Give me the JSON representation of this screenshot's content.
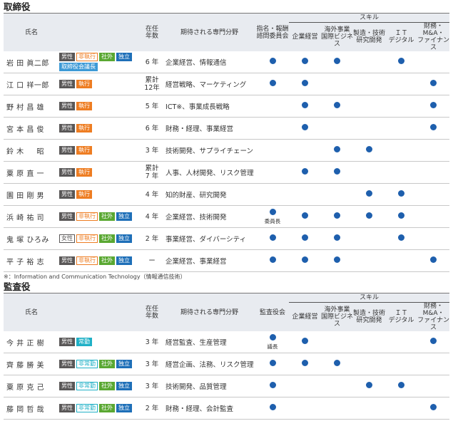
{
  "sections": [
    {
      "title": "取締役",
      "header": {
        "name": "氏名",
        "tenure": "在任\n年数",
        "field": "期待される専門分野",
        "committee": "指名・報酬\n諮問委員会",
        "skill_group": "スキル",
        "skills": [
          "企業経営",
          "海外事業\n国際ビジネス",
          "製造・技術\n研究開発",
          "ＩＴ\nデジタル",
          "財務・M&A・\nファイナンス"
        ]
      },
      "rows": [
        {
          "name": "岩 田 眞二郎",
          "tags": [
            {
              "text": "男性",
              "color": "#595757",
              "fill": true
            },
            {
              "text": "非執行",
              "color": "#ee7d22",
              "fill": false
            },
            {
              "text": "社外",
              "color": "#5aa832",
              "fill": true
            },
            {
              "text": "独立",
              "color": "#1e6fb8",
              "fill": true
            },
            {
              "text": "取締役会議長",
              "color": "#3d9ad6",
              "fill": true
            }
          ],
          "tenure": "6 年",
          "field": "企業経営、情報通信",
          "committee": true,
          "skills": [
            true,
            true,
            false,
            true,
            false
          ]
        },
        {
          "name": "江 口 祥一郎",
          "tags": [
            {
              "text": "男性",
              "color": "#595757",
              "fill": true
            },
            {
              "text": "執行",
              "color": "#ee7d22",
              "fill": true
            }
          ],
          "tenure": "累計\n12年",
          "field": "経営戦略、マーケティング",
          "committee": true,
          "skills": [
            true,
            false,
            false,
            false,
            true
          ]
        },
        {
          "name": "野 村 昌 雄",
          "tags": [
            {
              "text": "男性",
              "color": "#595757",
              "fill": true
            },
            {
              "text": "執行",
              "color": "#ee7d22",
              "fill": true
            }
          ],
          "tenure": "5 年",
          "field": "ICT※、事業成長戦略",
          "committee": false,
          "skills": [
            true,
            true,
            false,
            false,
            true
          ]
        },
        {
          "name": "宮 本 昌 俊",
          "tags": [
            {
              "text": "男性",
              "color": "#595757",
              "fill": true
            },
            {
              "text": "執行",
              "color": "#ee7d22",
              "fill": true
            }
          ],
          "tenure": "6 年",
          "field": "財務・経理、事業経営",
          "committee": false,
          "skills": [
            true,
            false,
            false,
            false,
            true
          ]
        },
        {
          "name": "鈴 木 　 昭",
          "tags": [
            {
              "text": "男性",
              "color": "#595757",
              "fill": true
            },
            {
              "text": "執行",
              "color": "#ee7d22",
              "fill": true
            }
          ],
          "tenure": "3 年",
          "field": "技術開発、サプライチェーン",
          "committee": false,
          "skills": [
            false,
            true,
            true,
            false,
            false
          ]
        },
        {
          "name": "粟 原 直 一",
          "tags": [
            {
              "text": "男性",
              "color": "#595757",
              "fill": true
            },
            {
              "text": "執行",
              "color": "#ee7d22",
              "fill": true
            }
          ],
          "tenure": "累計\n7 年",
          "field": "人事、人材開発、リスク管理",
          "committee": false,
          "skills": [
            true,
            true,
            false,
            false,
            false
          ]
        },
        {
          "name": "園 田 剛 男",
          "tags": [
            {
              "text": "男性",
              "color": "#595757",
              "fill": true
            },
            {
              "text": "執行",
              "color": "#ee7d22",
              "fill": true
            }
          ],
          "tenure": "4 年",
          "field": "知的財産、研究開発",
          "committee": false,
          "skills": [
            false,
            false,
            true,
            true,
            false
          ]
        },
        {
          "name": "浜 崎 祐 司",
          "tags": [
            {
              "text": "男性",
              "color": "#595757",
              "fill": true
            },
            {
              "text": "非執行",
              "color": "#ee7d22",
              "fill": false
            },
            {
              "text": "社外",
              "color": "#5aa832",
              "fill": true
            },
            {
              "text": "独立",
              "color": "#1e6fb8",
              "fill": true
            }
          ],
          "tenure": "4 年",
          "field": "企業経営、技術開発",
          "committee": true,
          "committee_note": "委員長",
          "skills": [
            true,
            true,
            true,
            true,
            false
          ]
        },
        {
          "name": "鬼 塚 ひろみ",
          "tags": [
            {
              "text": "女性",
              "color": "#595757",
              "fill": false
            },
            {
              "text": "非執行",
              "color": "#ee7d22",
              "fill": false
            },
            {
              "text": "社外",
              "color": "#5aa832",
              "fill": true
            },
            {
              "text": "独立",
              "color": "#1e6fb8",
              "fill": true
            }
          ],
          "tenure": "2 年",
          "field": "事業経営、ダイバーシティ",
          "committee": true,
          "skills": [
            true,
            true,
            false,
            true,
            false
          ]
        },
        {
          "name": "平 子 裕 志",
          "tags": [
            {
              "text": "男性",
              "color": "#595757",
              "fill": true
            },
            {
              "text": "非執行",
              "color": "#ee7d22",
              "fill": false
            },
            {
              "text": "社外",
              "color": "#5aa832",
              "fill": true
            },
            {
              "text": "独立",
              "color": "#1e6fb8",
              "fill": true
            }
          ],
          "tenure": "ー",
          "field": "企業経営、事業経営",
          "committee": true,
          "skills": [
            true,
            true,
            false,
            false,
            true
          ]
        }
      ],
      "footnote": "※：Information and Communication Technology（情報通信技術）"
    },
    {
      "title": "監査役",
      "header": {
        "name": "氏名",
        "tenure": "在任\n年数",
        "field": "期待される専門分野",
        "committee": "監査役会",
        "skill_group": "スキル",
        "skills": [
          "企業経営",
          "海外事業\n国際ビジネス",
          "製造・技術\n研究開発",
          "ＩＴ\nデジタル",
          "財務・M&A・\nファイナンス"
        ]
      },
      "rows": [
        {
          "name": "今 井 正 樹",
          "tags": [
            {
              "text": "男性",
              "color": "#595757",
              "fill": true
            },
            {
              "text": "常勤",
              "color": "#1fb0c6",
              "fill": true
            }
          ],
          "tenure": "3 年",
          "field": "経営監査、生産管理",
          "committee": true,
          "committee_note": "議長",
          "skills": [
            true,
            false,
            false,
            false,
            true
          ]
        },
        {
          "name": "齊 藤 勝 美",
          "tags": [
            {
              "text": "男性",
              "color": "#595757",
              "fill": true
            },
            {
              "text": "非常勤",
              "color": "#1fb0c6",
              "fill": false
            },
            {
              "text": "社外",
              "color": "#5aa832",
              "fill": true
            },
            {
              "text": "独立",
              "color": "#1e6fb8",
              "fill": true
            }
          ],
          "tenure": "3 年",
          "field": "経営企画、法務、リスク管理",
          "committee": true,
          "skills": [
            true,
            true,
            false,
            false,
            false
          ]
        },
        {
          "name": "粟 原 克 己",
          "tags": [
            {
              "text": "男性",
              "color": "#595757",
              "fill": true
            },
            {
              "text": "非常勤",
              "color": "#1fb0c6",
              "fill": false
            },
            {
              "text": "社外",
              "color": "#5aa832",
              "fill": true
            },
            {
              "text": "独立",
              "color": "#1e6fb8",
              "fill": true
            }
          ],
          "tenure": "3 年",
          "field": "技術開発、品質管理",
          "committee": true,
          "skills": [
            false,
            false,
            true,
            true,
            false
          ]
        },
        {
          "name": "藤 岡 哲 哉",
          "tags": [
            {
              "text": "男性",
              "color": "#595757",
              "fill": true
            },
            {
              "text": "非常勤",
              "color": "#1fb0c6",
              "fill": false
            },
            {
              "text": "社外",
              "color": "#5aa832",
              "fill": true
            },
            {
              "text": "独立",
              "color": "#1e6fb8",
              "fill": true
            }
          ],
          "tenure": "2 年",
          "field": "財務・経理、会計監査",
          "committee": true,
          "skills": [
            false,
            false,
            false,
            false,
            true
          ]
        }
      ]
    }
  ]
}
